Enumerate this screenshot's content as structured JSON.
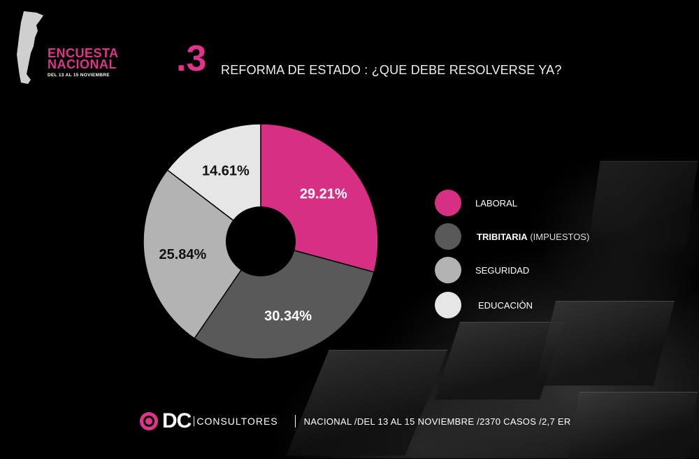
{
  "header": {
    "survey_title_line1": "ENCUESTA",
    "survey_title_line2": "NACIONAL",
    "survey_subtitle": "DEL 13 AL 15 NOVIEMBRE",
    "question_number": ".3",
    "question_title": "REFORMA DE ESTADO : ¿QUE DEBE RESOLVERSE YA?"
  },
  "colors": {
    "accent": "#d62f83",
    "laboral": "#d62f83",
    "tributaria": "#595959",
    "seguridad": "#b3b3b3",
    "educacion": "#e6e6e6"
  },
  "legend": [
    {
      "label_bold": "LABORAL",
      "label_extra": "",
      "color": "#d62f83"
    },
    {
      "label_bold": "TRIBITARIA",
      "label_extra": " (IMPUESTOS)",
      "color": "#595959"
    },
    {
      "label_bold": "SEGURIDAD",
      "label_extra": "",
      "color": "#b3b3b3"
    },
    {
      "label_bold": "EDUCACIÒN",
      "label_extra": "",
      "color": "#e6e6e6"
    }
  ],
  "slice_labels": [
    "29.21%",
    "30.34%",
    "25.84%",
    "14.61%"
  ],
  "footer": {
    "brand": "DC",
    "brand_suffix": "CONSULTORES",
    "info": "NACIONAL /DEL 13 AL 15 NOVIEMBRE /2370 CASOS /2,7 ER"
  },
  "chart_data": {
    "type": "pie",
    "donut": true,
    "title": "REFORMA DE ESTADO : ¿QUE DEBE RESOLVERSE YA?",
    "categories": [
      "LABORAL",
      "TRIBITARIA (IMPUESTOS)",
      "SEGURIDAD",
      "EDUCACIÒN"
    ],
    "values": [
      29.21,
      30.34,
      25.84,
      14.61
    ],
    "unit": "%",
    "colors": [
      "#d62f83",
      "#595959",
      "#b3b3b3",
      "#e6e6e6"
    ],
    "legend_position": "right",
    "start_angle_deg": 0,
    "direction": "clockwise"
  }
}
